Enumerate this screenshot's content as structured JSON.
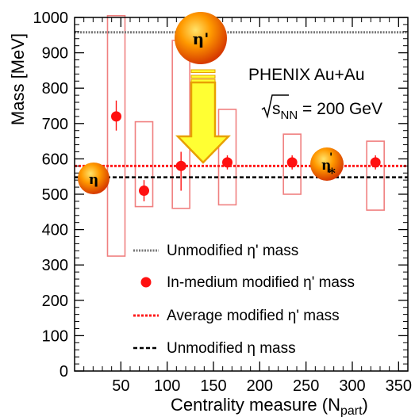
{
  "chart_data": {
    "type": "scatter",
    "experiment": "PHENIX Au+Au",
    "energy": {
      "prefix": "s",
      "sub": "NN",
      "suffix": " = 200 GeV"
    },
    "xlabel": {
      "main": "Centrality measure (N",
      "sub": "part",
      "close": ")"
    },
    "ylabel": "Mass [MeV]",
    "xlim": [
      0,
      360
    ],
    "ylim": [
      0,
      1000
    ],
    "xticks": [
      50,
      100,
      150,
      200,
      250,
      300,
      350
    ],
    "yticks": [
      0,
      100,
      200,
      300,
      400,
      500,
      600,
      700,
      800,
      900,
      1000
    ],
    "series": [
      {
        "name": "In-medium modified η' mass",
        "x": [
          45,
          75,
          115,
          165,
          235,
          325
        ],
        "y": [
          720,
          510,
          580,
          590,
          590,
          590
        ],
        "err_low": [
          40,
          30,
          70,
          20,
          20,
          20
        ],
        "err_high": [
          45,
          30,
          40,
          20,
          20,
          20
        ],
        "sys_low": [
          395,
          45,
          120,
          120,
          90,
          135
        ],
        "sys_high": [
          285,
          195,
          355,
          150,
          80,
          60
        ]
      }
    ],
    "lines": [
      {
        "name": "Unmodified η' mass",
        "y": 958
      },
      {
        "name": "Average modified η' mass",
        "y": 580
      },
      {
        "name": "Unmodified η mass",
        "y": 548
      }
    ],
    "annotations": {
      "eta_prime": "η'",
      "eta": "η",
      "eta_star_base": "η",
      "eta_star_sup": "'",
      "eta_star_sub": "*"
    },
    "colors": {
      "marker": "#ff1010",
      "sys_box": "#f08080",
      "unmod_eta_prime": "#777777",
      "average": "#ff1a1a",
      "unmod_eta": "#000000",
      "arrow_fill": "#ffff33",
      "arrow_stroke": "#e8a000"
    }
  }
}
